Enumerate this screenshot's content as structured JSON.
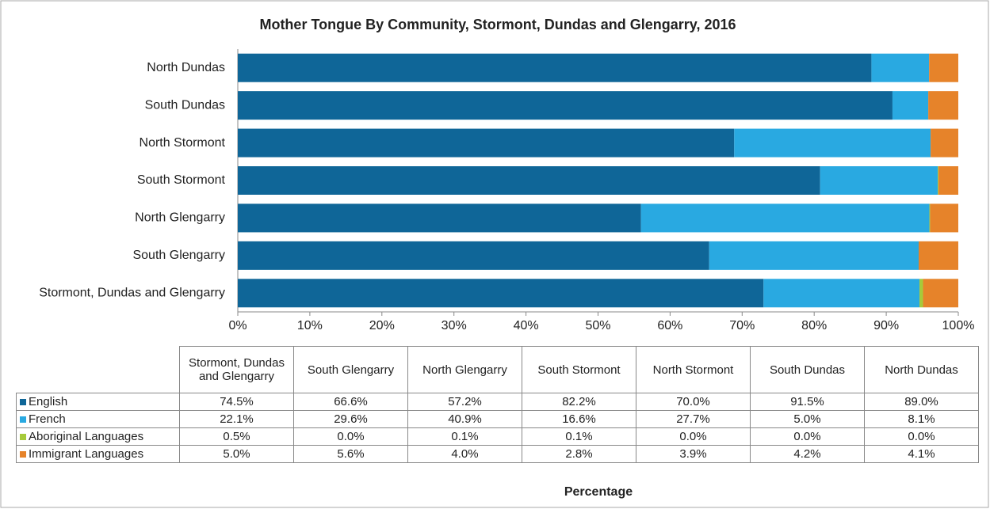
{
  "chart_data": {
    "type": "bar",
    "orientation": "horizontal",
    "stacking": "percent",
    "title": "Mother Tongue By Community, Stormont, Dundas and Glengarry, 2016",
    "xlabel": "Percentage",
    "categories": [
      "Stormont, Dundas and Glengarry",
      "South Glengarry",
      "North Glengarry",
      "South Stormont",
      "North Stormont",
      "South Dundas",
      "North Dundas"
    ],
    "series": [
      {
        "name": "English",
        "color": "#0f6698",
        "values": [
          74.5,
          66.6,
          57.2,
          82.2,
          70.0,
          91.5,
          89.0
        ],
        "value_labels": [
          "74.5%",
          "66.6%",
          "57.2%",
          "82.2%",
          "70.0%",
          "91.5%",
          "89.0%"
        ]
      },
      {
        "name": "French",
        "color": "#29a9e1",
        "values": [
          22.1,
          29.6,
          40.9,
          16.6,
          27.7,
          5.0,
          8.1
        ],
        "value_labels": [
          "22.1%",
          "29.6%",
          "40.9%",
          "16.6%",
          "27.7%",
          "5.0%",
          "8.1%"
        ]
      },
      {
        "name": "Aboriginal Languages",
        "color": "#a6ca3a",
        "values": [
          0.5,
          0.0,
          0.1,
          0.1,
          0.0,
          0.0,
          0.0
        ],
        "value_labels": [
          "0.5%",
          "0.0%",
          "0.1%",
          "0.1%",
          "0.0%",
          "0.0%",
          "0.0%"
        ]
      },
      {
        "name": "Immigrant Languages",
        "color": "#e6832a",
        "values": [
          5.0,
          5.6,
          4.0,
          2.8,
          3.9,
          4.2,
          4.1
        ],
        "value_labels": [
          "5.0%",
          "5.6%",
          "4.0%",
          "2.8%",
          "3.9%",
          "4.2%",
          "4.1%"
        ]
      }
    ],
    "xlim": [
      0,
      100
    ],
    "xticks": [
      {
        "value": 0,
        "label": "0%"
      },
      {
        "value": 10,
        "label": "10%"
      },
      {
        "value": 20,
        "label": "20%"
      },
      {
        "value": 30,
        "label": "30%"
      },
      {
        "value": 40,
        "label": "40%"
      },
      {
        "value": 50,
        "label": "50%"
      },
      {
        "value": 60,
        "label": "60%"
      },
      {
        "value": 70,
        "label": "70%"
      },
      {
        "value": 80,
        "label": "80%"
      },
      {
        "value": 90,
        "label": "90%"
      },
      {
        "value": 100,
        "label": "100%"
      }
    ],
    "grid": false,
    "legend": "table"
  }
}
